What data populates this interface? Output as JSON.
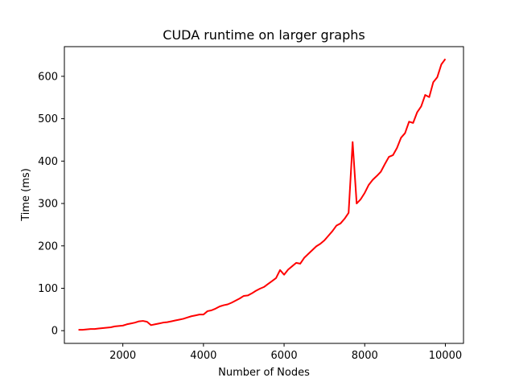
{
  "chart_data": {
    "type": "line",
    "title": "CUDA runtime on larger graphs",
    "xlabel": "Number of Nodes",
    "ylabel": "Time (ms)",
    "xlim": [
      550,
      10450
    ],
    "ylim": [
      -30,
      670
    ],
    "xticks": [
      2000,
      4000,
      6000,
      8000,
      10000
    ],
    "yticks": [
      0,
      100,
      200,
      300,
      400,
      500,
      600
    ],
    "grid": false,
    "legend": "none",
    "series": [
      {
        "color": "#ff0000",
        "x": [
          900,
          1000,
          1100,
          1200,
          1300,
          1400,
          1500,
          1600,
          1700,
          1800,
          1900,
          2000,
          2100,
          2200,
          2300,
          2400,
          2500,
          2600,
          2700,
          2800,
          2900,
          3000,
          3100,
          3200,
          3300,
          3400,
          3500,
          3600,
          3700,
          3800,
          3900,
          4000,
          4100,
          4200,
          4300,
          4400,
          4500,
          4600,
          4700,
          4800,
          4900,
          5000,
          5100,
          5200,
          5300,
          5400,
          5500,
          5600,
          5700,
          5800,
          5900,
          6000,
          6100,
          6200,
          6300,
          6400,
          6500,
          6600,
          6700,
          6800,
          6900,
          7000,
          7100,
          7200,
          7300,
          7400,
          7500,
          7600,
          7700,
          7800,
          7900,
          8000,
          8100,
          8200,
          8300,
          8400,
          8500,
          8600,
          8700,
          8800,
          8900,
          9000,
          9100,
          9200,
          9300,
          9400,
          9500,
          9600,
          9700,
          9800,
          9900,
          10000
        ],
        "y": [
          2,
          2,
          3,
          4,
          4,
          5,
          6,
          7,
          8,
          10,
          11,
          12,
          15,
          17,
          19,
          22,
          23,
          21,
          13,
          15,
          17,
          19,
          20,
          22,
          24,
          26,
          28,
          31,
          34,
          36,
          38,
          38,
          46,
          48,
          52,
          57,
          60,
          62,
          66,
          71,
          76,
          82,
          83,
          88,
          94,
          99,
          103,
          110,
          117,
          124,
          143,
          132,
          144,
          152,
          160,
          158,
          172,
          181,
          190,
          199,
          205,
          213,
          224,
          235,
          248,
          253,
          264,
          278,
          445,
          300,
          310,
          325,
          344,
          356,
          365,
          375,
          393,
          410,
          414,
          431,
          455,
          466,
          493,
          490,
          515,
          529,
          556,
          551,
          586,
          598,
          628,
          641
        ]
      }
    ]
  }
}
